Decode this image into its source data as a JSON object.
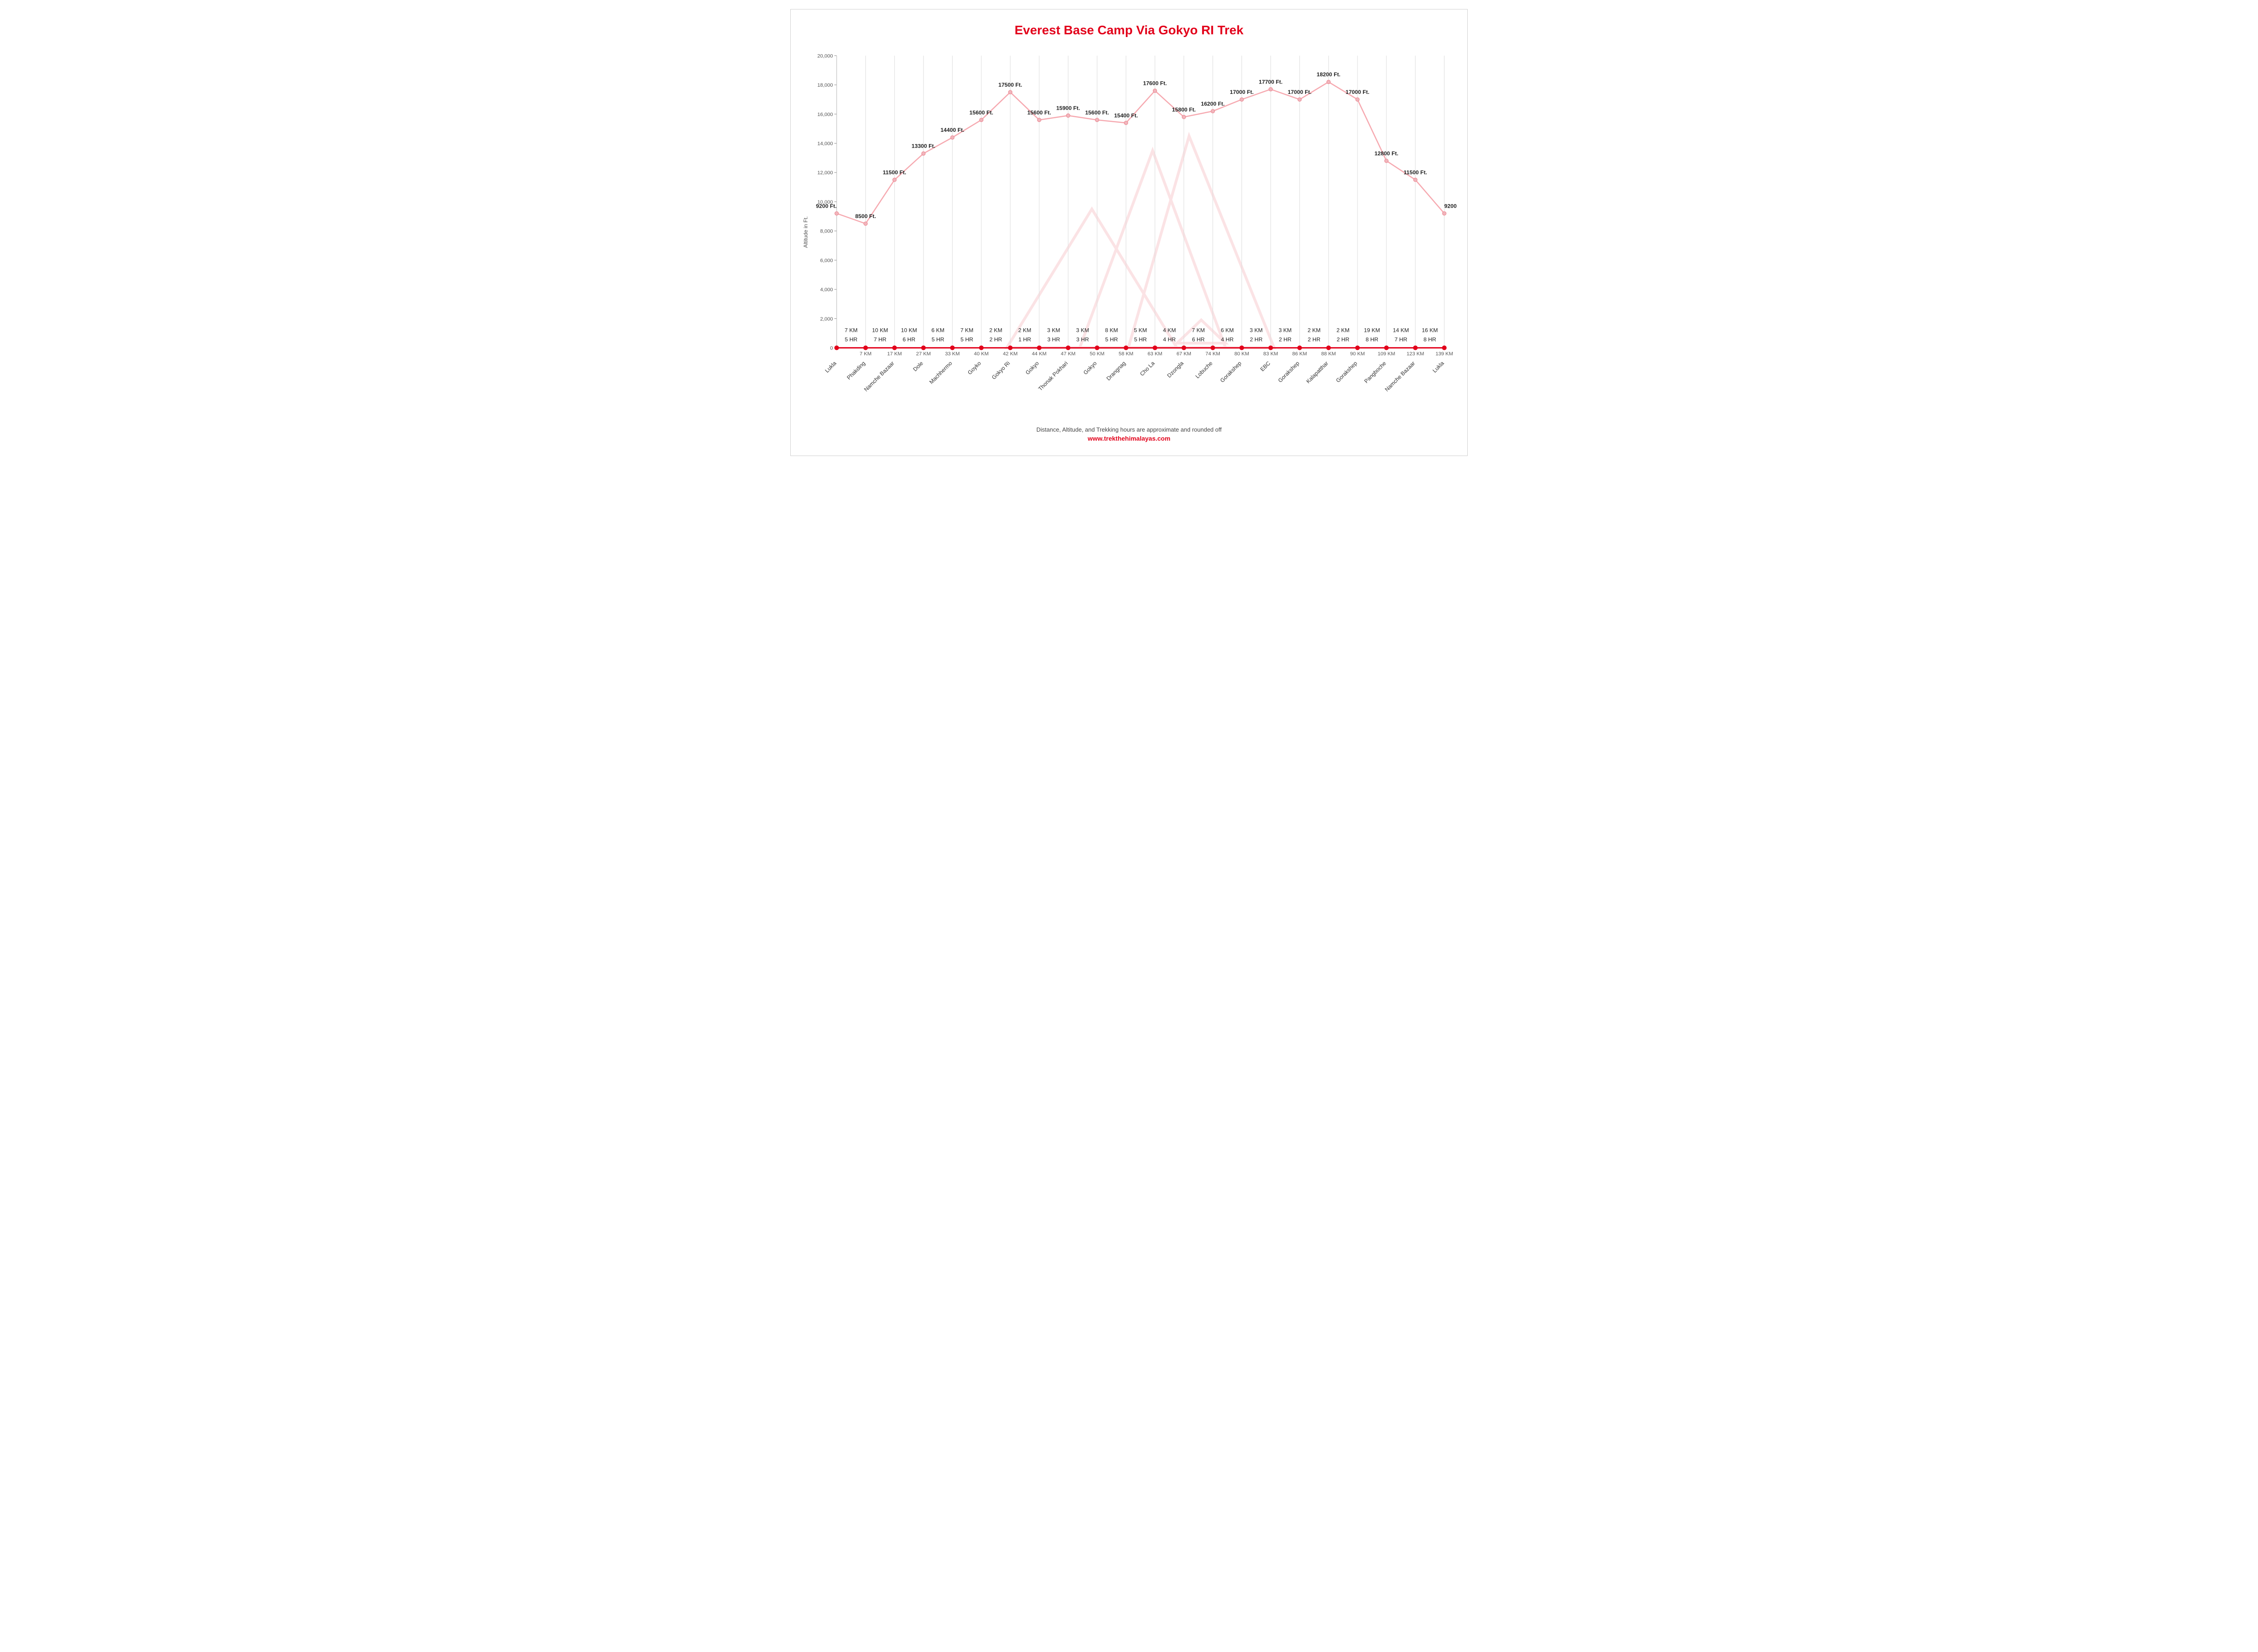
{
  "title": "Everest Base Camp Via Gokyo RI Trek",
  "ylabel": "Altitude in Ft.",
  "footer_note": "Distance, Altitude, and Trekking hours are approximate and rounded off",
  "footer_link": "www.trekthehimalayas.com",
  "chart": {
    "type": "line",
    "ylim": [
      0,
      20000
    ],
    "ytick_step": 2000,
    "background_color": "#ffffff",
    "grid_color": "#dcdcdc",
    "line_color": "#f6a9b0",
    "line_width": 2.5,
    "marker_fill": "#f2b5bc",
    "marker_stroke": "#e9858f",
    "marker_radius": 4,
    "baseline_color": "#e2001a",
    "baseline_width": 3,
    "baseline_marker_fill": "#e2001a",
    "baseline_marker_radius": 5,
    "title_color": "#e2001a",
    "title_fontsize": 28,
    "label_fontsize": 12,
    "tick_fontsize": 11,
    "bg_mountain_stroke": "#fbe3e5",
    "bg_mountain_stroke_width": 6,
    "stops": [
      {
        "name": "Lukla",
        "altitude_ft": 9200,
        "cum_km": 0,
        "seg_km": null,
        "seg_hr": null
      },
      {
        "name": "Phakding",
        "altitude_ft": 8500,
        "cum_km": 7,
        "seg_km": "7 KM",
        "seg_hr": "5 HR"
      },
      {
        "name": "Namche Bazaar",
        "altitude_ft": 11500,
        "cum_km": 17,
        "seg_km": "10 KM",
        "seg_hr": "7 HR"
      },
      {
        "name": "Dole",
        "altitude_ft": 13300,
        "cum_km": 27,
        "seg_km": "10 KM",
        "seg_hr": "6 HR"
      },
      {
        "name": "Machhermo",
        "altitude_ft": 14400,
        "cum_km": 33,
        "seg_km": "6 KM",
        "seg_hr": "5 HR"
      },
      {
        "name": "Goyko",
        "altitude_ft": 15600,
        "cum_km": 40,
        "seg_km": "7 KM",
        "seg_hr": "5 HR"
      },
      {
        "name": "Gokyo Ri",
        "altitude_ft": 17500,
        "cum_km": 42,
        "seg_km": "2 KM",
        "seg_hr": "2 HR"
      },
      {
        "name": "Gokyo",
        "altitude_ft": 15600,
        "cum_km": 44,
        "seg_km": "2 KM",
        "seg_hr": "1 HR"
      },
      {
        "name": "Thonak Pokhari",
        "altitude_ft": 15900,
        "cum_km": 47,
        "seg_km": "3 KM",
        "seg_hr": "3 HR"
      },
      {
        "name": "Gokyo",
        "altitude_ft": 15600,
        "cum_km": 50,
        "seg_km": "3 KM",
        "seg_hr": "3 HR"
      },
      {
        "name": "Drangnag",
        "altitude_ft": 15400,
        "cum_km": 58,
        "seg_km": "8 KM",
        "seg_hr": "5 HR"
      },
      {
        "name": "Cho La",
        "altitude_ft": 17600,
        "cum_km": 63,
        "seg_km": "5 KM",
        "seg_hr": "5 HR"
      },
      {
        "name": "Dzongla",
        "altitude_ft": 15800,
        "cum_km": 67,
        "seg_km": "4 KM",
        "seg_hr": "4 HR"
      },
      {
        "name": "Lobuche",
        "altitude_ft": 16200,
        "cum_km": 74,
        "seg_km": "7 KM",
        "seg_hr": "6 HR"
      },
      {
        "name": "Gorakshep",
        "altitude_ft": 17000,
        "cum_km": 80,
        "seg_km": "6 KM",
        "seg_hr": "4 HR"
      },
      {
        "name": "EBC",
        "altitude_ft": 17700,
        "cum_km": 83,
        "seg_km": "3 KM",
        "seg_hr": "2 HR"
      },
      {
        "name": "Gorakshep",
        "altitude_ft": 17000,
        "cum_km": 86,
        "seg_km": "3 KM",
        "seg_hr": "2 HR"
      },
      {
        "name": "Kalapatthar",
        "altitude_ft": 18200,
        "cum_km": 88,
        "seg_km": "2 KM",
        "seg_hr": "2 HR"
      },
      {
        "name": "Gorakshep",
        "altitude_ft": 17000,
        "cum_km": 90,
        "seg_km": "2 KM",
        "seg_hr": "2 HR"
      },
      {
        "name": "Pangboche",
        "altitude_ft": 12800,
        "cum_km": 109,
        "seg_km": "19 KM",
        "seg_hr": "8 HR"
      },
      {
        "name": "Namche Bazaar",
        "altitude_ft": 11500,
        "cum_km": 123,
        "seg_km": "14 KM",
        "seg_hr": "7 HR"
      },
      {
        "name": "Lukla",
        "altitude_ft": 9200,
        "cum_km": 139,
        "seg_km": "16 KM",
        "seg_hr": "8 HR"
      }
    ]
  }
}
